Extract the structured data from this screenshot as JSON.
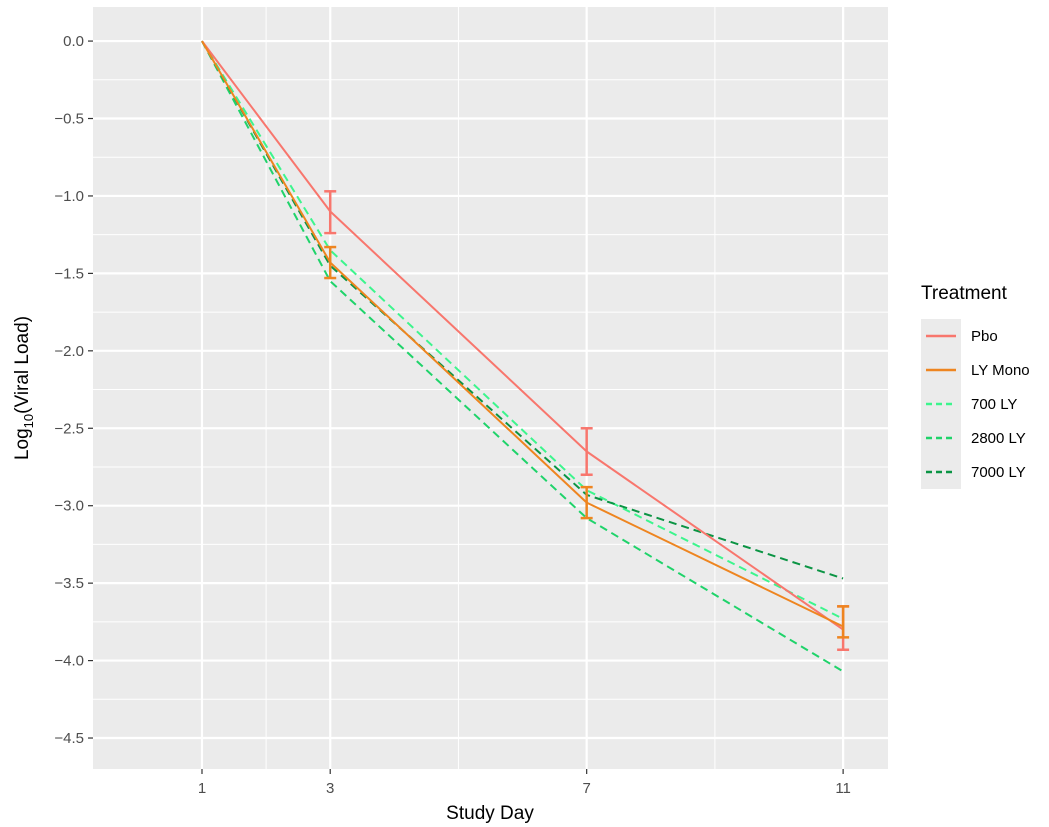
{
  "chart_data": {
    "type": "line",
    "xlabel": "Study Day",
    "ylabel_base": "Log",
    "ylabel_sub": "10",
    "ylabel_rest": "(Viral Load)",
    "x_ticks": [
      1,
      3,
      7,
      11
    ],
    "y_ticks": [
      0.0,
      -0.5,
      -1.0,
      -1.5,
      -2.0,
      -2.5,
      -3.0,
      -3.5,
      -4.0,
      -4.5
    ],
    "y_tick_labels": [
      "0.0",
      "−0.5",
      "−1.0",
      "−1.5",
      "−2.0",
      "−2.5",
      "−3.0",
      "−3.5",
      "−4.0",
      "−4.5"
    ],
    "xlim": [
      -0.7,
      11.7
    ],
    "ylim": [
      -4.7,
      0.22
    ],
    "grid": true,
    "legend_position": "right",
    "legend_title": "Treatment",
    "x": [
      1,
      3,
      7,
      11
    ],
    "series": [
      {
        "name": "700 LY",
        "color": "#3df58d",
        "dashed": true,
        "values": [
          0.0,
          -1.35,
          -2.9,
          -3.73
        ]
      },
      {
        "name": "2800 LY",
        "color": "#1fd36a",
        "dashed": true,
        "values": [
          0.0,
          -1.55,
          -3.08,
          -4.07
        ]
      },
      {
        "name": "7000 LY",
        "color": "#0b9444",
        "dashed": true,
        "values": [
          0.0,
          -1.45,
          -2.93,
          -3.47
        ]
      },
      {
        "name": "Pbo",
        "color": "#f8766d",
        "dashed": false,
        "values": [
          0.0,
          -1.1,
          -2.65,
          -3.8
        ],
        "error_bars": [
          null,
          [
            -1.24,
            -0.97
          ],
          [
            -2.8,
            -2.5
          ],
          [
            -3.93,
            -3.65
          ]
        ]
      },
      {
        "name": "LY Mono",
        "color": "#ee8520",
        "dashed": false,
        "values": [
          0.0,
          -1.43,
          -2.98,
          -3.78
        ],
        "error_bars": [
          null,
          [
            -1.53,
            -1.33
          ],
          [
            -3.08,
            -2.88
          ],
          [
            -3.85,
            -3.65
          ]
        ]
      }
    ],
    "legend_order": [
      "Pbo",
      "LY Mono",
      "700 LY",
      "2800 LY",
      "7000 LY"
    ]
  },
  "theme": {
    "panel_background": "#ebebeb",
    "grid_color": "#ffffff"
  }
}
